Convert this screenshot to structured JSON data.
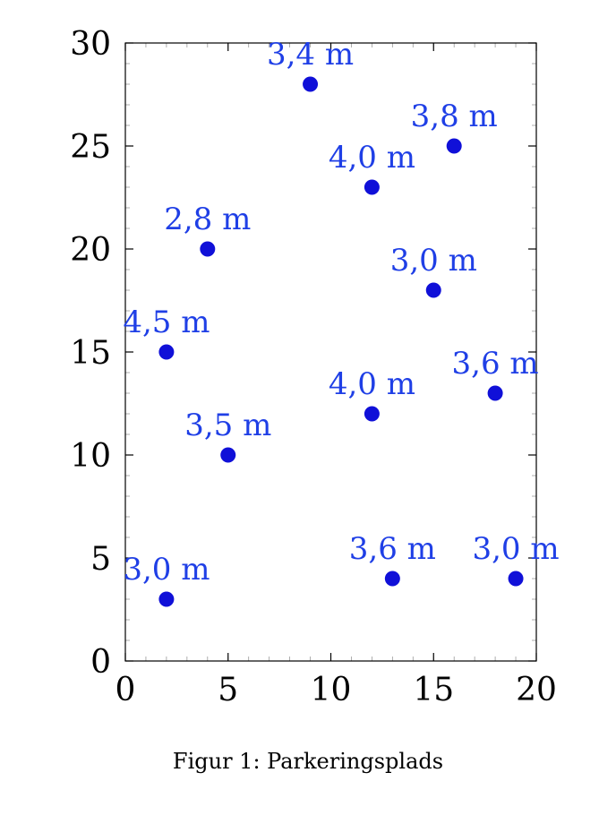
{
  "caption": "Figur 1: Parkeringsplads",
  "colors": {
    "points": "#1010d8",
    "labels": "#1f3fe6",
    "axis": "#000000",
    "grid_minor": "#9a9a9a"
  },
  "chart_data": {
    "type": "scatter",
    "title": "",
    "xlabel": "",
    "ylabel": "",
    "xlim": [
      0,
      20
    ],
    "ylim": [
      0,
      30
    ],
    "xticks": [
      0,
      5,
      10,
      15,
      20
    ],
    "yticks": [
      0,
      5,
      10,
      15,
      20,
      25,
      30
    ],
    "xtick_labels": [
      "0",
      "5",
      "10",
      "15",
      "20"
    ],
    "ytick_labels": [
      "0",
      "5",
      "10",
      "15",
      "20",
      "25",
      "30"
    ],
    "grid": false,
    "points": [
      {
        "x": 9,
        "y": 28,
        "label": "3,4 m"
      },
      {
        "x": 16,
        "y": 25,
        "label": "3,8 m"
      },
      {
        "x": 12,
        "y": 23,
        "label": "4,0 m"
      },
      {
        "x": 4,
        "y": 20,
        "label": "2,8 m"
      },
      {
        "x": 15,
        "y": 18,
        "label": "3,0 m"
      },
      {
        "x": 2,
        "y": 15,
        "label": "4,5 m"
      },
      {
        "x": 18,
        "y": 13,
        "label": "3,6 m"
      },
      {
        "x": 12,
        "y": 12,
        "label": "4,0 m"
      },
      {
        "x": 5,
        "y": 10,
        "label": "3,5 m"
      },
      {
        "x": 13,
        "y": 4,
        "label": "3,6 m"
      },
      {
        "x": 19,
        "y": 4,
        "label": "3,0 m"
      },
      {
        "x": 2,
        "y": 3,
        "label": "3,0 m"
      }
    ]
  }
}
